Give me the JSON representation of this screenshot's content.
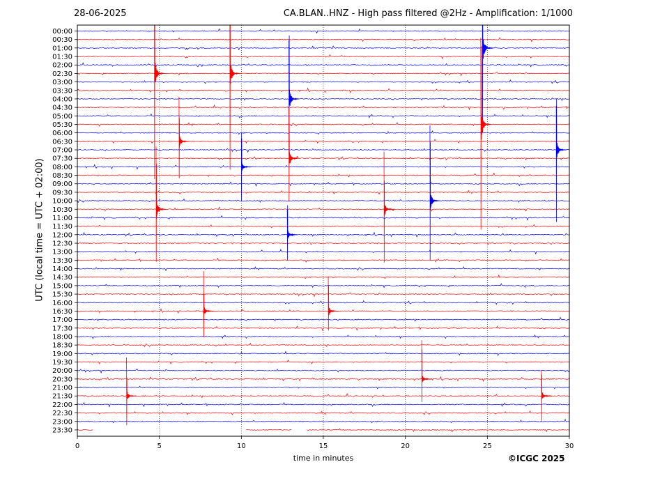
{
  "header": {
    "date": "28-06-2025",
    "title": "CA.BLAN..HNZ - High pass filtered @2Hz - Amplification: 1/1000"
  },
  "credit": "©ICGC 2025",
  "chart_data": {
    "type": "line",
    "xlabel": "time in minutes",
    "ylabel": "UTC (local time = UTC + 02:00)",
    "xlim": [
      0,
      30
    ],
    "xticks": [
      0,
      5,
      10,
      15,
      20,
      25,
      30
    ],
    "grid": "vertical dotted lines at 5-minute ticks",
    "colors": {
      "even_rows": "#0000ff",
      "odd_rows": "#ff0000",
      "frame": "#000000"
    },
    "rows": [
      "00:00",
      "00:30",
      "01:00",
      "01:30",
      "02:00",
      "02:30",
      "03:00",
      "03:30",
      "04:00",
      "04:30",
      "05:00",
      "05:30",
      "06:00",
      "06:30",
      "07:00",
      "07:30",
      "08:00",
      "08:30",
      "09:00",
      "09:30",
      "10:00",
      "10:30",
      "11:00",
      "11:30",
      "12:00",
      "12:30",
      "13:00",
      "13:30",
      "14:00",
      "14:30",
      "15:00",
      "15:30",
      "16:00",
      "16:30",
      "17:00",
      "17:30",
      "18:00",
      "18:30",
      "19:00",
      "19:30",
      "20:00",
      "20:30",
      "21:00",
      "21:30",
      "22:00",
      "22:30",
      "23:00",
      "23:30"
    ],
    "events": [
      {
        "row": "02:30",
        "minute": 4.7,
        "amplitude": 0.9
      },
      {
        "row": "02:30",
        "minute": 9.3,
        "amplitude": 0.8
      },
      {
        "row": "01:00",
        "minute": 24.7,
        "amplitude": 0.9
      },
      {
        "row": "04:00",
        "minute": 12.9,
        "amplitude": 0.7
      },
      {
        "row": "05:30",
        "minute": 24.6,
        "amplitude": 1.0
      },
      {
        "row": "06:30",
        "minute": 6.2,
        "amplitude": 0.4
      },
      {
        "row": "07:00",
        "minute": 29.2,
        "amplitude": 0.6
      },
      {
        "row": "07:30",
        "minute": 12.9,
        "amplitude": 0.5
      },
      {
        "row": "08:00",
        "minute": 10.0,
        "amplitude": 0.3
      },
      {
        "row": "10:00",
        "minute": 21.5,
        "amplitude": 0.6
      },
      {
        "row": "10:30",
        "minute": 4.8,
        "amplitude": 0.6
      },
      {
        "row": "10:30",
        "minute": 18.7,
        "amplitude": 0.5
      },
      {
        "row": "12:00",
        "minute": 12.8,
        "amplitude": 0.3
      },
      {
        "row": "16:30",
        "minute": 7.7,
        "amplitude": 0.3
      },
      {
        "row": "16:30",
        "minute": 15.3,
        "amplitude": 0.3
      },
      {
        "row": "20:30",
        "minute": 21.0,
        "amplitude": 0.3
      },
      {
        "row": "21:30",
        "minute": 3.0,
        "amplitude": 0.3
      },
      {
        "row": "21:30",
        "minute": 28.3,
        "amplitude": 0.3
      }
    ],
    "data_gaps": [
      {
        "row": "23:30",
        "from_minute": 1.0,
        "to_minute": 10.3
      },
      {
        "row": "23:30",
        "from_minute": 13.1,
        "to_minute": 14.0
      }
    ]
  }
}
